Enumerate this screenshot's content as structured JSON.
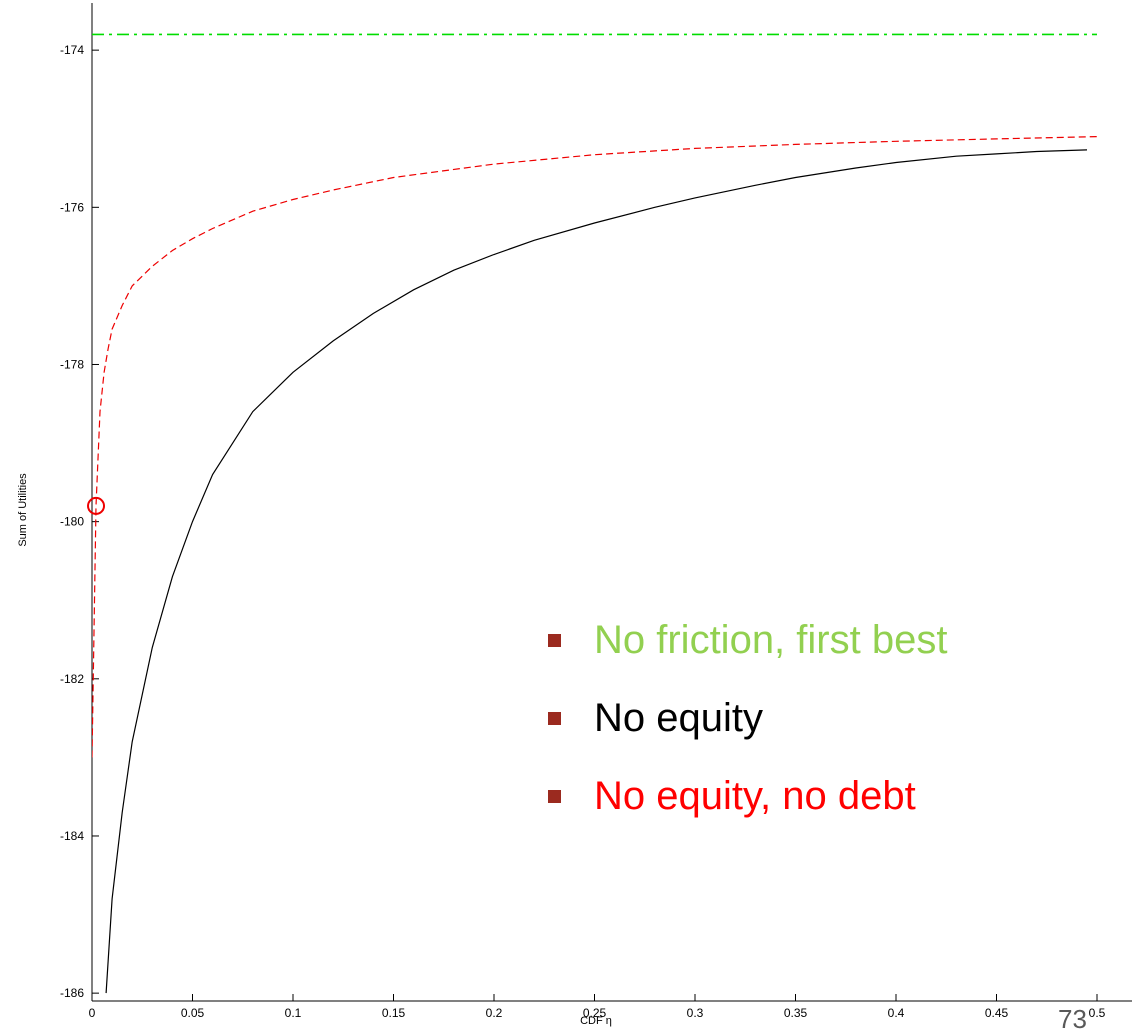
{
  "chart_data": {
    "type": "line",
    "title": "",
    "xlabel": "CDF η",
    "ylabel": "Sum of Utilities",
    "xlim": [
      0,
      0.5
    ],
    "ylim": [
      -186.1,
      -173.4
    ],
    "x_ticks": [
      0,
      0.05,
      0.1,
      0.15,
      0.2,
      0.25,
      0.3,
      0.35,
      0.4,
      0.45,
      0.5
    ],
    "x_tick_labels": [
      "0",
      "0.05",
      "0.1",
      "0.15",
      "0.2",
      "0.25",
      "0.3",
      "0.35",
      "0.4",
      "0.45",
      "0.5"
    ],
    "y_ticks": [
      -174,
      -176,
      -178,
      -180,
      -182,
      -184,
      -186
    ],
    "y_tick_labels": [
      "-174",
      "-176",
      "-178",
      "-180",
      "-182",
      "-184",
      "-186"
    ],
    "grid": false,
    "series": [
      {
        "name": "No friction, first best",
        "color": "#00dd00",
        "style": "dash-dot",
        "x": [
          0,
          0.5
        ],
        "y": [
          -173.8,
          -173.8
        ]
      },
      {
        "name": "No equity",
        "color": "#000000",
        "style": "solid",
        "x": [
          0.007,
          0.01,
          0.015,
          0.02,
          0.03,
          0.04,
          0.05,
          0.06,
          0.07,
          0.08,
          0.1,
          0.12,
          0.14,
          0.16,
          0.18,
          0.2,
          0.22,
          0.25,
          0.28,
          0.3,
          0.33,
          0.35,
          0.38,
          0.4,
          0.43,
          0.45,
          0.47,
          0.495
        ],
        "y": [
          -186.0,
          -184.8,
          -183.7,
          -182.8,
          -181.6,
          -180.7,
          -180.0,
          -179.4,
          -179.0,
          -178.6,
          -178.1,
          -177.7,
          -177.35,
          -177.05,
          -176.8,
          -176.6,
          -176.42,
          -176.2,
          -176.0,
          -175.88,
          -175.72,
          -175.62,
          -175.5,
          -175.43,
          -175.35,
          -175.32,
          -175.29,
          -175.27
        ]
      },
      {
        "name": "No equity, no debt",
        "color": "#ee0000",
        "style": "dashed",
        "x": [
          0,
          0.002,
          0.004,
          0.006,
          0.008,
          0.01,
          0.015,
          0.02,
          0.03,
          0.04,
          0.05,
          0.06,
          0.08,
          0.1,
          0.12,
          0.15,
          0.2,
          0.25,
          0.3,
          0.35,
          0.4,
          0.45,
          0.5
        ],
        "y": [
          -183.0,
          -179.8,
          -178.6,
          -178.1,
          -177.8,
          -177.55,
          -177.25,
          -177.0,
          -176.75,
          -176.55,
          -176.4,
          -176.27,
          -176.05,
          -175.9,
          -175.78,
          -175.62,
          -175.45,
          -175.33,
          -175.25,
          -175.2,
          -175.16,
          -175.13,
          -175.1
        ]
      }
    ],
    "marker": {
      "label": "circle",
      "x": 0.002,
      "y": -179.8,
      "color": "#ee0000"
    }
  },
  "legend": {
    "items": [
      {
        "label": "No friction, first best",
        "color": "#92d050"
      },
      {
        "label": "No equity",
        "color": "#000000"
      },
      {
        "label": "No equity, no debt",
        "color": "#ff0000"
      }
    ],
    "bullet_color": "#9b2a1f"
  },
  "page_number": "73"
}
